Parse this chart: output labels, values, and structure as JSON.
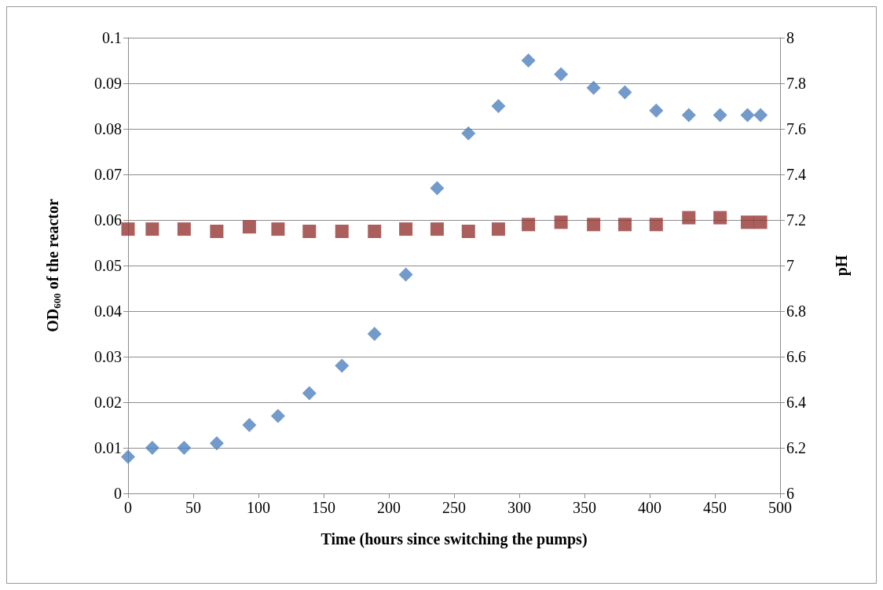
{
  "chart_data": {
    "type": "scatter",
    "xlabel": "Time (hours since switching the pumps)",
    "ylabel": "OD$_{600}$ of the reactor",
    "y2label": "pH",
    "xlim": [
      0,
      500
    ],
    "xticks": [
      0,
      50,
      100,
      150,
      200,
      250,
      300,
      350,
      400,
      450,
      500
    ],
    "ylim": [
      0,
      0.1
    ],
    "yticks": [
      0,
      0.01,
      0.02,
      0.03,
      0.04,
      0.05,
      0.06,
      0.07,
      0.08,
      0.09,
      0.1
    ],
    "y2lim": [
      6,
      8
    ],
    "y2ticks": [
      6,
      6.2,
      6.4,
      6.6,
      6.8,
      7,
      7.2,
      7.4,
      7.6,
      7.8,
      8
    ],
    "grid": "y",
    "x": [
      0,
      18.6,
      43,
      68,
      93,
      115,
      139,
      164,
      189,
      213,
      237,
      261,
      284,
      307,
      332,
      357,
      381,
      405,
      430,
      454,
      475,
      485
    ],
    "series": [
      {
        "color": "#4f81bd",
        "marker": "diamond",
        "values": [
          0.008,
          0.01,
          0.01,
          0.011,
          0.015,
          0.017,
          0.022,
          0.028,
          0.035,
          0.048,
          0.067,
          0.079,
          0.085,
          0.095,
          0.092,
          0.089,
          0.088,
          0.084,
          0.083,
          0.083,
          0.083,
          0.083
        ]
      },
      {
        "color": "#953735",
        "marker": "square",
        "axis": "y2",
        "values": [
          7.16,
          7.16,
          7.16,
          7.15,
          7.17,
          7.16,
          7.15,
          7.15,
          7.15,
          7.16,
          7.16,
          7.15,
          7.16,
          7.18,
          7.19,
          7.18,
          7.18,
          7.18,
          7.21,
          7.21,
          7.19,
          7.19
        ]
      }
    ]
  }
}
